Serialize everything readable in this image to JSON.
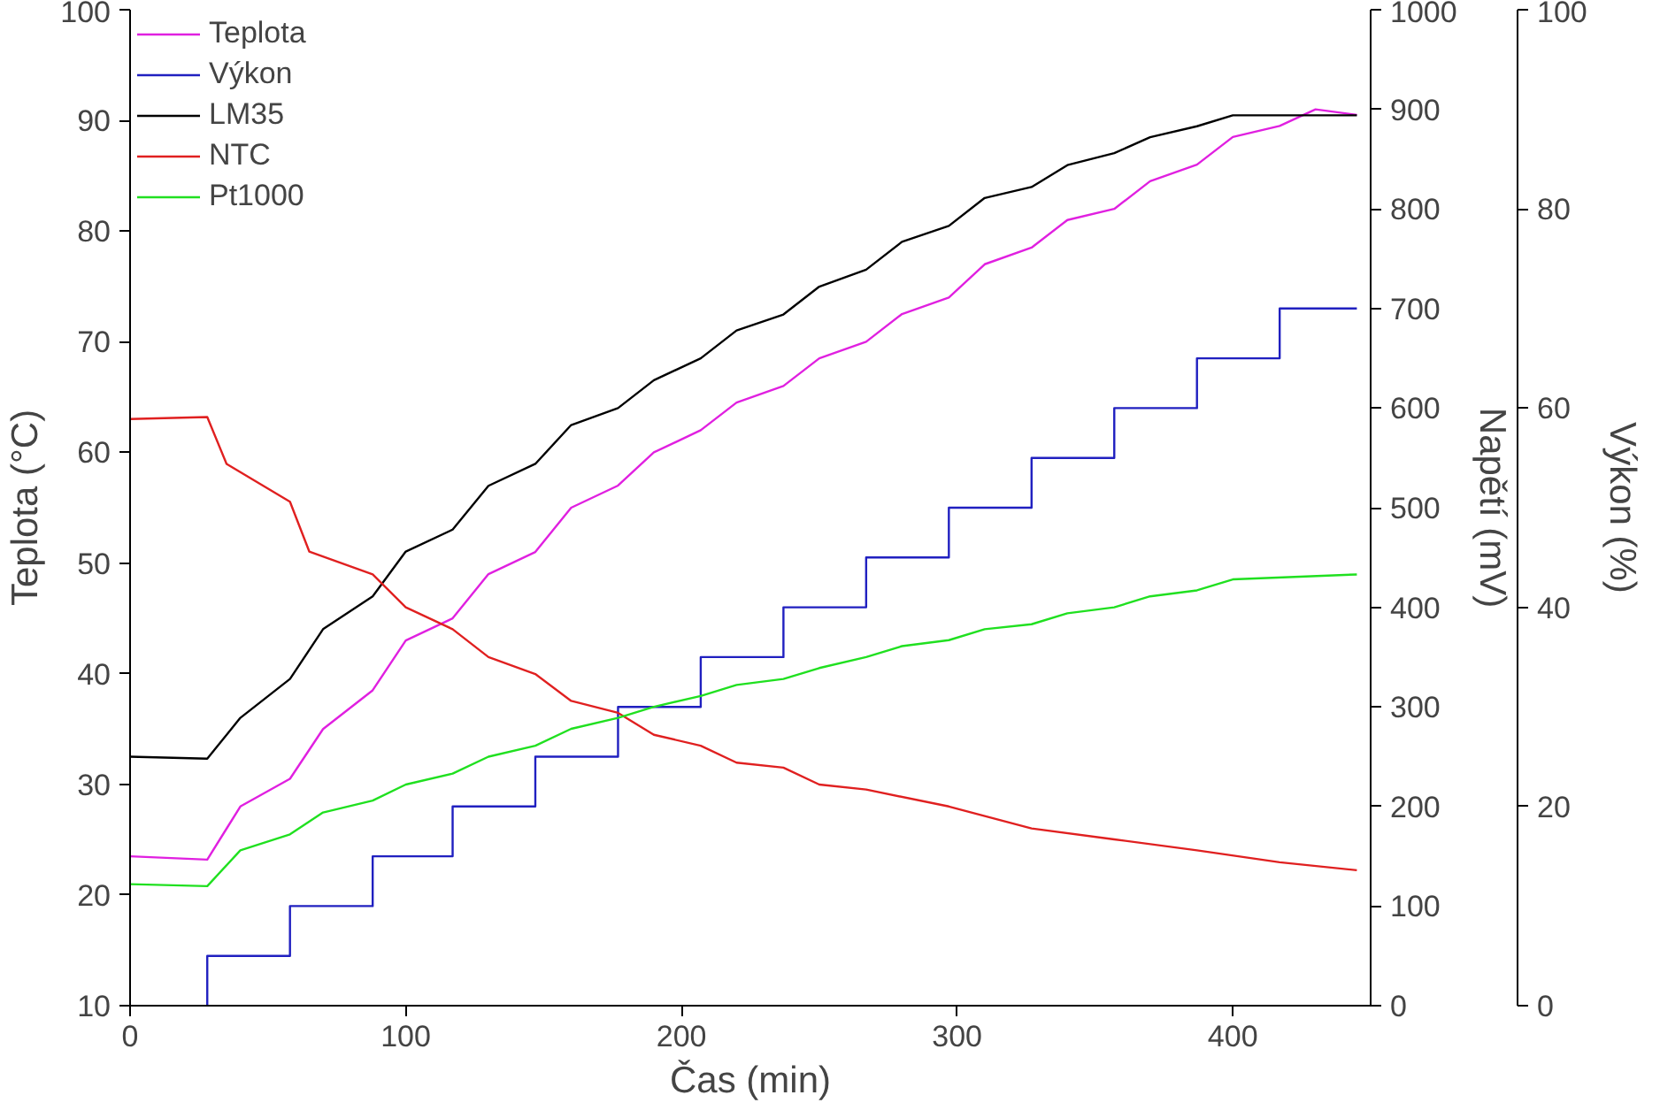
{
  "chart_data": {
    "type": "line",
    "xlabel": "Čas (min)",
    "ylabel": "Teplota (°C)",
    "y2label": "Napětí (mV)",
    "y3label": "Výkon (%)",
    "xlim": [
      0,
      450
    ],
    "xticks": [
      0,
      100,
      200,
      300,
      400
    ],
    "ylim": [
      10,
      100
    ],
    "yticks": [
      10,
      20,
      30,
      40,
      50,
      60,
      70,
      80,
      90,
      100
    ],
    "y2lim": [
      0,
      1000
    ],
    "y2ticks": [
      0,
      100,
      200,
      300,
      400,
      500,
      600,
      700,
      800,
      900,
      1000
    ],
    "y3lim": [
      0,
      100
    ],
    "y3ticks": [
      0,
      20,
      40,
      60,
      80,
      100
    ],
    "grid": false,
    "legend": "top left",
    "series": [
      {
        "name": "Teplota",
        "color": "#e020e0",
        "x": [
          0,
          28,
          40,
          58,
          70,
          88,
          100,
          117,
          130,
          147,
          160,
          177,
          190,
          207,
          220,
          237,
          250,
          267,
          280,
          297,
          310,
          327,
          340,
          357,
          370,
          387,
          400,
          417,
          430,
          445
        ],
        "values": [
          23.5,
          23.2,
          28,
          30.5,
          35,
          38.5,
          43,
          45,
          49,
          51,
          55,
          57,
          60,
          62,
          64.5,
          66,
          68.5,
          70,
          72.5,
          74,
          77,
          78.5,
          81,
          82,
          84.5,
          86,
          88.5,
          89.5,
          91,
          90.5
        ]
      },
      {
        "name": "Výkon",
        "type": "step",
        "axis": "y3",
        "color": "#2020c0",
        "x": [
          28,
          28,
          58,
          88,
          117,
          147,
          177,
          207,
          237,
          267,
          297,
          327,
          357,
          387,
          417,
          445
        ],
        "values": [
          0,
          5,
          10,
          15,
          20,
          25,
          30,
          35,
          40,
          45,
          50,
          55,
          60,
          65,
          70,
          70
        ]
      },
      {
        "name": "LM35",
        "axis": "y2",
        "color": "#000000",
        "x": [
          0,
          28,
          40,
          58,
          70,
          88,
          100,
          117,
          130,
          147,
          160,
          177,
          190,
          207,
          220,
          237,
          250,
          267,
          280,
          297,
          310,
          327,
          340,
          357,
          370,
          387,
          400,
          445
        ],
        "values": [
          250,
          248,
          289,
          328,
          378,
          411,
          456,
          478,
          522,
          544,
          583,
          600,
          628,
          650,
          678,
          694,
          722,
          739,
          767,
          783,
          811,
          822,
          844,
          856,
          872,
          883,
          894,
          894
        ]
      },
      {
        "name": "NTC",
        "axis": "y2",
        "color": "#e02020",
        "x": [
          0,
          28,
          35,
          58,
          65,
          88,
          100,
          117,
          130,
          147,
          160,
          177,
          190,
          207,
          220,
          237,
          250,
          267,
          297,
          327,
          357,
          387,
          417,
          445
        ],
        "values": [
          589,
          591,
          544,
          506,
          456,
          433,
          400,
          378,
          350,
          333,
          306,
          294,
          272,
          261,
          244,
          239,
          222,
          217,
          200,
          178,
          167,
          156,
          144,
          136
        ]
      },
      {
        "name": "Pt1000",
        "axis": "y2",
        "color": "#20e020",
        "x": [
          0,
          28,
          40,
          58,
          70,
          88,
          100,
          117,
          130,
          147,
          160,
          177,
          190,
          207,
          220,
          237,
          250,
          267,
          280,
          297,
          310,
          327,
          340,
          357,
          370,
          387,
          400,
          445
        ],
        "values": [
          122,
          120,
          156,
          172,
          194,
          206,
          222,
          233,
          250,
          261,
          278,
          289,
          300,
          311,
          322,
          328,
          339,
          350,
          361,
          367,
          378,
          383,
          394,
          400,
          411,
          417,
          428,
          433
        ]
      }
    ]
  }
}
